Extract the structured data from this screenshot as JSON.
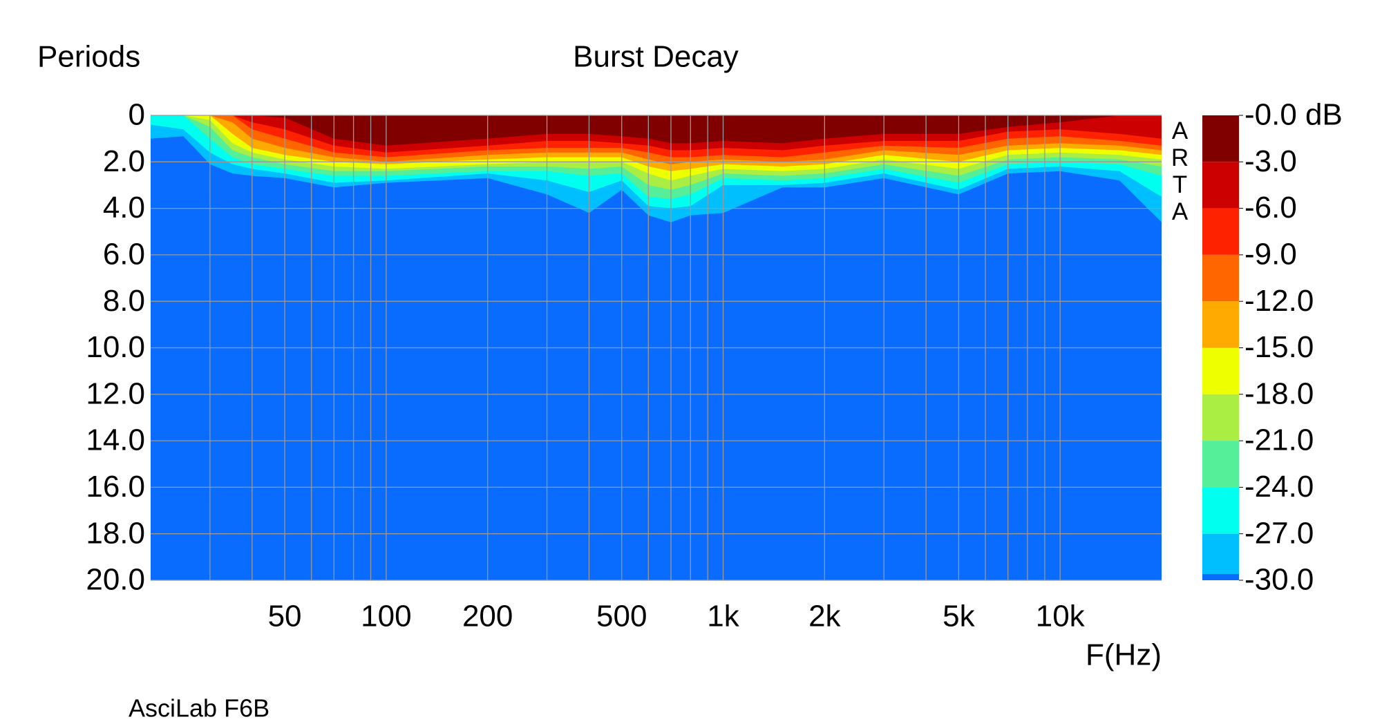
{
  "chart_data": {
    "type": "contour",
    "title": "Burst Decay",
    "ylabel": "Periods",
    "xlabel": "F(Hz)",
    "footer": "AsciLab F6B",
    "watermark": "ARTA",
    "xlog": true,
    "grid": true,
    "xlim": [
      20,
      20000
    ],
    "ylim": [
      0,
      20
    ],
    "yticks": [
      0,
      {
        "value": 2,
        "label": "2.0"
      },
      {
        "value": 4,
        "label": "4.0"
      },
      {
        "value": 6,
        "label": "6.0"
      },
      {
        "value": 8,
        "label": "8.0"
      },
      {
        "value": 10,
        "label": "10.0"
      },
      {
        "value": 12,
        "label": "12.0"
      },
      {
        "value": 14,
        "label": "14.0"
      },
      {
        "value": 16,
        "label": "16.0"
      },
      {
        "value": 18,
        "label": "18.0"
      },
      {
        "value": 20,
        "label": "20.0"
      }
    ],
    "xticks": [
      50,
      100,
      200,
      500,
      {
        "value": 1000,
        "label": "1k"
      },
      {
        "value": 2000,
        "label": "2k"
      },
      {
        "value": 5000,
        "label": "5k"
      },
      {
        "value": 10000,
        "label": "10k"
      }
    ],
    "xgrid": [
      30,
      40,
      50,
      60,
      70,
      80,
      90,
      100,
      200,
      300,
      400,
      500,
      600,
      700,
      800,
      900,
      1000,
      2000,
      3000,
      4000,
      5000,
      6000,
      7000,
      8000,
      9000,
      10000
    ],
    "x": [
      20,
      25,
      30,
      35,
      40,
      50,
      70,
      100,
      200,
      300,
      400,
      500,
      600,
      700,
      800,
      1000,
      1500,
      2000,
      3000,
      5000,
      7000,
      10000,
      15000,
      20000
    ],
    "floor_color": "#0a6cff",
    "contours": [
      {
        "color": "#800000",
        "values": [
          0,
          0,
          0,
          0,
          0,
          0.1,
          1.0,
          1.3,
          1.0,
          0.8,
          0.8,
          0.9,
          1.0,
          1.2,
          1.2,
          1.1,
          1.2,
          1.0,
          0.8,
          0.8,
          0.5,
          0.3,
          0,
          0
        ]
      },
      {
        "color": "#cc0000",
        "values": [
          0,
          0,
          0,
          0,
          0.3,
          0.6,
          1.3,
          1.6,
          1.3,
          1.1,
          1.1,
          1.2,
          1.3,
          1.5,
          1.5,
          1.4,
          1.5,
          1.3,
          1.1,
          1.1,
          0.7,
          0.6,
          0.8,
          1.0
        ]
      },
      {
        "color": "#ff2200",
        "values": [
          0,
          0,
          0,
          0,
          0.6,
          1.0,
          1.6,
          1.8,
          1.5,
          1.4,
          1.4,
          1.4,
          1.6,
          1.8,
          1.8,
          1.7,
          1.8,
          1.6,
          1.3,
          1.4,
          1.0,
          0.9,
          1.1,
          1.3
        ]
      },
      {
        "color": "#ff6600",
        "values": [
          0,
          0,
          0,
          0.3,
          1.0,
          1.4,
          1.8,
          2.0,
          1.7,
          1.6,
          1.6,
          1.6,
          1.9,
          2.1,
          2.0,
          1.9,
          2.0,
          1.9,
          1.5,
          1.7,
          1.3,
          1.2,
          1.3,
          1.5
        ]
      },
      {
        "color": "#ffaa00",
        "values": [
          0,
          0,
          0,
          0.8,
          1.4,
          1.7,
          2.0,
          2.1,
          1.9,
          1.8,
          1.8,
          1.8,
          2.2,
          2.4,
          2.3,
          2.1,
          2.2,
          2.1,
          1.7,
          2.0,
          1.5,
          1.4,
          1.5,
          1.7
        ]
      },
      {
        "color": "#eeff00",
        "values": [
          0,
          0,
          0.2,
          1.2,
          1.6,
          1.9,
          2.2,
          2.3,
          2.1,
          2.0,
          2.0,
          2.0,
          2.5,
          2.8,
          2.6,
          2.3,
          2.4,
          2.3,
          1.9,
          2.3,
          1.7,
          1.6,
          1.7,
          1.9
        ]
      },
      {
        "color": "#aaee44",
        "values": [
          0,
          0,
          0.5,
          1.5,
          1.8,
          2.1,
          2.4,
          2.4,
          2.2,
          2.2,
          2.3,
          2.2,
          3.0,
          3.2,
          3.0,
          2.5,
          2.6,
          2.5,
          2.1,
          2.6,
          1.9,
          1.8,
          1.9,
          2.2
        ]
      },
      {
        "color": "#55ee99",
        "values": [
          0,
          0,
          1.0,
          1.8,
          2.1,
          2.3,
          2.6,
          2.6,
          2.4,
          2.4,
          2.6,
          2.5,
          3.5,
          3.6,
          3.4,
          2.7,
          2.8,
          2.7,
          2.3,
          2.9,
          2.1,
          2.0,
          2.1,
          2.6
        ]
      },
      {
        "color": "#00ffee",
        "values": [
          0.4,
          0.6,
          1.6,
          2.1,
          2.3,
          2.5,
          2.9,
          2.8,
          2.5,
          2.8,
          3.3,
          2.8,
          3.9,
          4.0,
          3.9,
          3.0,
          3.0,
          2.9,
          2.5,
          3.2,
          2.3,
          2.2,
          2.4,
          3.5
        ]
      },
      {
        "color": "#00bfff",
        "values": [
          1.0,
          0.9,
          2.1,
          2.5,
          2.6,
          2.7,
          3.1,
          2.9,
          2.7,
          3.4,
          4.2,
          3.2,
          4.3,
          4.6,
          4.3,
          4.2,
          3.1,
          3.1,
          2.7,
          3.4,
          2.5,
          2.4,
          2.8,
          4.6
        ]
      }
    ],
    "clim": [
      -30,
      0
    ],
    "colorbar_ticks": [
      {
        "value": 0,
        "label": "-0.0 dB"
      },
      {
        "value": -3,
        "label": "-3.0"
      },
      {
        "value": -6,
        "label": "-6.0"
      },
      {
        "value": -9,
        "label": "-9.0"
      },
      {
        "value": -12,
        "label": "-12.0"
      },
      {
        "value": -15,
        "label": "-15.0"
      },
      {
        "value": -18,
        "label": "-18.0"
      },
      {
        "value": -21,
        "label": "-21.0"
      },
      {
        "value": -24,
        "label": "-24.0"
      },
      {
        "value": -27,
        "label": "-27.0"
      },
      {
        "value": -30,
        "label": "-30.0"
      }
    ]
  }
}
